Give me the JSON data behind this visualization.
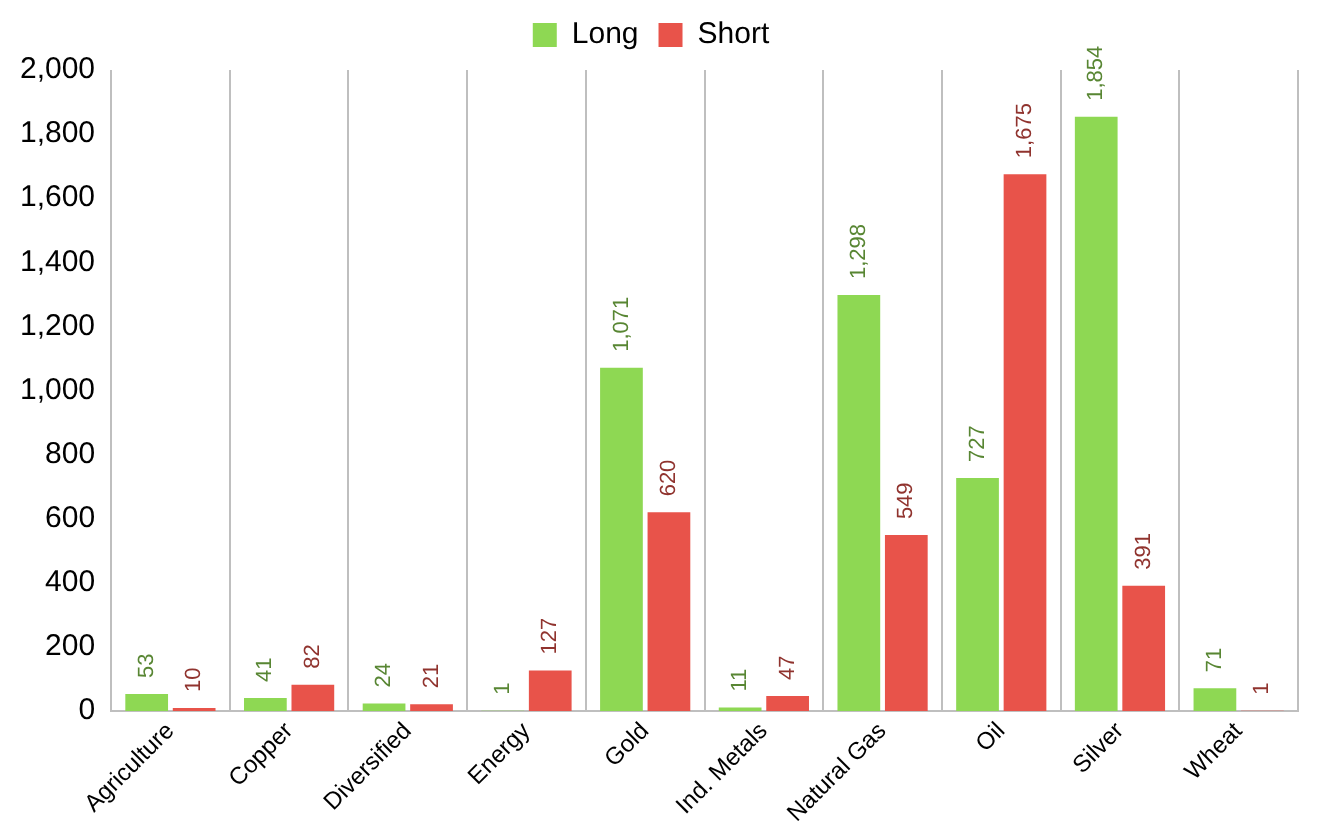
{
  "chart_data": {
    "type": "bar",
    "categories": [
      "Agriculture",
      "Copper",
      "Diversified",
      "Energy",
      "Gold",
      "Ind. Metals",
      "Natural Gas",
      "Oil",
      "Silver",
      "Wheat"
    ],
    "series": [
      {
        "name": "Long",
        "color": "#8ed853",
        "values": [
          53,
          41,
          24,
          1,
          1071,
          11,
          1298,
          727,
          1854,
          71
        ],
        "value_labels": [
          "53",
          "41",
          "24",
          "1",
          "1,071",
          "11",
          "1,298",
          "727",
          "1,854",
          "71"
        ]
      },
      {
        "name": "Short",
        "color": "#e8534a",
        "values": [
          10,
          82,
          21,
          127,
          620,
          47,
          549,
          1675,
          391,
          1
        ],
        "value_labels": [
          "10",
          "82",
          "21",
          "127",
          "620",
          "47",
          "549",
          "1,675",
          "391",
          "1"
        ]
      }
    ],
    "ylim": [
      0,
      2000
    ],
    "yticks": [
      0,
      200,
      400,
      600,
      800,
      {
        "value": 1000,
        "label": "1,000"
      },
      {
        "value": 1200,
        "label": "1,200"
      },
      {
        "value": 1400,
        "label": "1,400"
      },
      {
        "value": 1600,
        "label": "1,600"
      },
      {
        "value": 1800,
        "label": "1,800"
      },
      {
        "value": 2000,
        "label": "2,000"
      }
    ],
    "grid": "x",
    "legend": "top"
  }
}
